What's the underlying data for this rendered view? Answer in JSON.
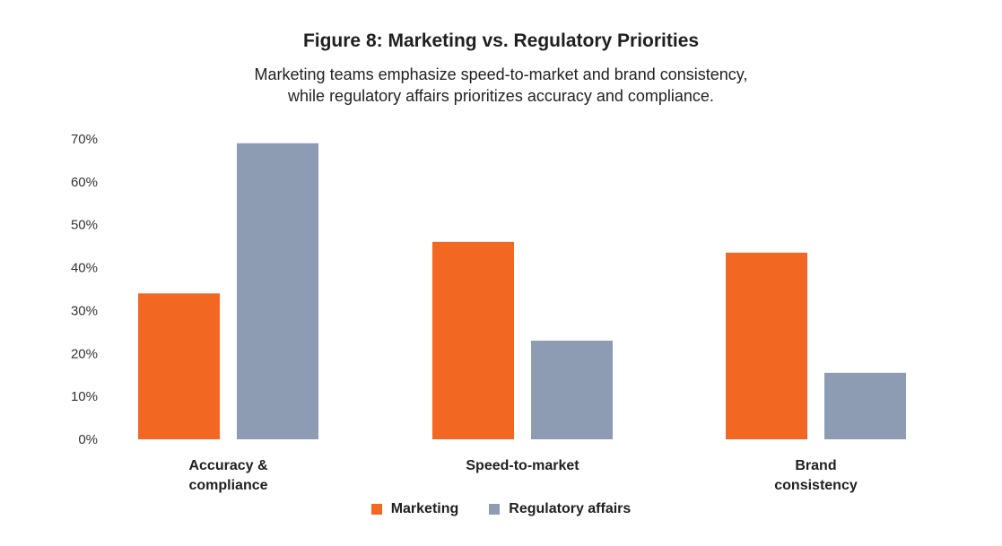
{
  "chart_data": {
    "type": "bar",
    "title": "Figure 8: Marketing vs. Regulatory Priorities",
    "subtitle_lines": [
      "Marketing teams emphasize speed-to-market and brand consistency,",
      "while regulatory affairs prioritizes accuracy and compliance."
    ],
    "categories": [
      [
        "Accuracy &",
        "compliance"
      ],
      [
        "Speed-to-market"
      ],
      [
        "Brand",
        "consistency"
      ]
    ],
    "series": [
      {
        "name": "Marketing",
        "color": "#f26722",
        "values": [
          34,
          46,
          43.5
        ]
      },
      {
        "name": "Regulatory affairs",
        "color": "#8d9bb3",
        "values": [
          69,
          23,
          15.5
        ]
      }
    ],
    "yticks": [
      "0%",
      "10%",
      "20%",
      "30%",
      "40%",
      "50%",
      "60%",
      "70%"
    ],
    "ylim": [
      0,
      70
    ],
    "grid": false,
    "legend_position": "bottom-center"
  }
}
